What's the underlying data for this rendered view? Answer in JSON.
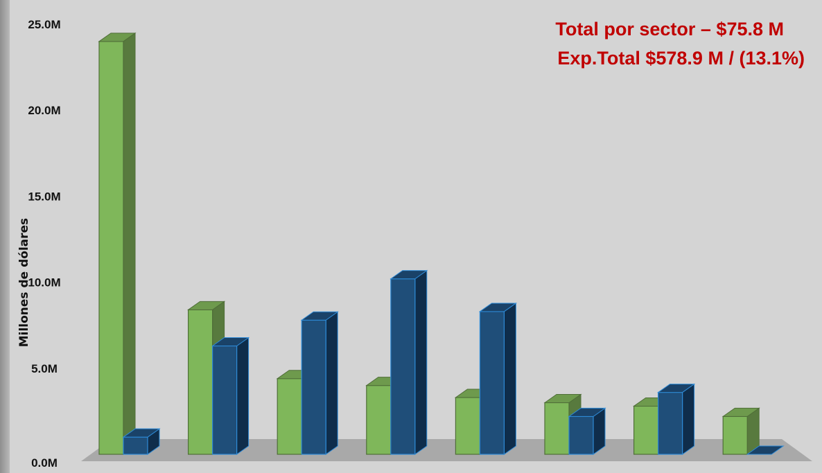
{
  "chart_data": {
    "type": "bar",
    "style": "3d-clustered-column",
    "categories": [
      "",
      "",
      "",
      "",
      "",
      "",
      "",
      ""
    ],
    "series": [
      {
        "color": "#7fb75a",
        "values": [
          24.0,
          8.4,
          4.4,
          4.0,
          3.3,
          3.0,
          2.8,
          2.2
        ]
      },
      {
        "color": "#1f4e79",
        "values": [
          1.0,
          6.3,
          7.8,
          10.2,
          8.3,
          2.2,
          3.6,
          0.0
        ]
      }
    ],
    "xlabel": "",
    "ylabel": "Millones de dólares",
    "ylim": [
      0,
      25
    ],
    "yticks": [
      {
        "value": 0,
        "label": "0.0M"
      },
      {
        "value": 5,
        "label": "5.0M"
      },
      {
        "value": 10,
        "label": "10.0M"
      },
      {
        "value": 15,
        "label": "15.0M"
      },
      {
        "value": 20,
        "label": "20.0M"
      },
      {
        "value": 25,
        "label": "25.0M"
      }
    ],
    "grid": false,
    "legend": "none",
    "annotations": [
      "Total por sector – $75.8 M",
      "Exp.Total $578.9 M / (13.1%)"
    ],
    "colors": {
      "background": "#d4d4d4",
      "floor": "#a9a9a9",
      "annotation": "#c00000"
    }
  }
}
